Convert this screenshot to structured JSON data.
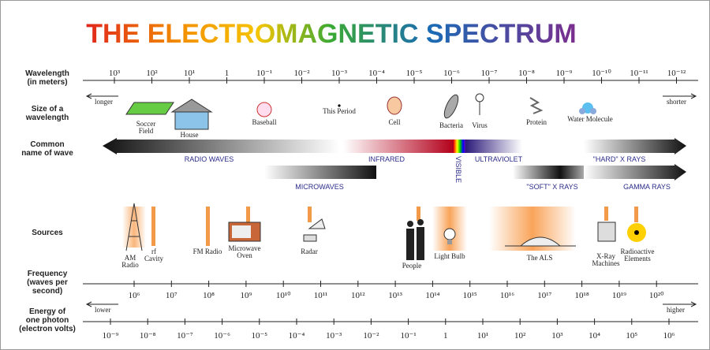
{
  "title": "THE ELECTROMAGNETIC SPECTRUM",
  "wavelength": {
    "label": [
      "Wavelength",
      "(in meters)"
    ],
    "ticks": [
      "10³",
      "10²",
      "10¹",
      "1",
      "10⁻¹",
      "10⁻²",
      "10⁻³",
      "10⁻⁴",
      "10⁻⁵",
      "10⁻⁶",
      "10⁻⁷",
      "10⁻⁸",
      "10⁻⁹",
      "10⁻¹⁰",
      "10⁻¹¹",
      "10⁻¹²"
    ]
  },
  "size": {
    "label": [
      "Size of a",
      "wavelength"
    ],
    "longer": "longer",
    "shorter": "shorter",
    "items": [
      [
        "Soccer",
        "Field"
      ],
      [
        "House"
      ],
      [
        "Baseball"
      ],
      [
        "This Period"
      ],
      [
        "Cell"
      ],
      [
        "Bacteria"
      ],
      [
        "Virus"
      ],
      [
        "Protein"
      ],
      [
        "Water Molecule"
      ]
    ]
  },
  "wave_names": {
    "label": [
      "Common",
      "name of wave"
    ],
    "names": [
      "RADIO WAVES",
      "INFRARED",
      "VISIBLE",
      "ULTRAVIOLET",
      "\"HARD\" X RAYS",
      "MICROWAVES",
      "\"SOFT\" X RAYS",
      "GAMMA RAYS"
    ]
  },
  "sources": {
    "label": "Sources",
    "items": [
      [
        "AM",
        "Radio"
      ],
      [
        "rf",
        "Cavity"
      ],
      [
        "FM Radio"
      ],
      [
        "Microwave",
        "Oven"
      ],
      [
        "Radar"
      ],
      [
        "People"
      ],
      [
        "Light Bulb"
      ],
      [
        "The ALS"
      ],
      [
        "X-Ray",
        "Machines"
      ],
      [
        "Radioactive",
        "Elements"
      ]
    ]
  },
  "frequency": {
    "label": [
      "Frequency",
      "(waves per",
      "second)"
    ],
    "ticks": [
      "10⁶",
      "10⁷",
      "10⁸",
      "10⁹",
      "10¹⁰",
      "10¹¹",
      "10¹²",
      "10¹³",
      "10¹⁴",
      "10¹⁵",
      "10¹⁶",
      "10¹⁷",
      "10¹⁸",
      "10¹⁹",
      "10²⁰"
    ]
  },
  "energy": {
    "label": [
      "Energy of",
      "one photon",
      "(electron volts)"
    ],
    "lower": "lower",
    "higher": "higher",
    "ticks": [
      "10⁻⁹",
      "10⁻⁸",
      "10⁻⁷",
      "10⁻⁶",
      "10⁻⁵",
      "10⁻⁴",
      "10⁻³",
      "10⁻²",
      "10⁻¹",
      "1",
      "10¹",
      "10²",
      "10³",
      "10⁴",
      "10⁵",
      "10⁶"
    ]
  }
}
